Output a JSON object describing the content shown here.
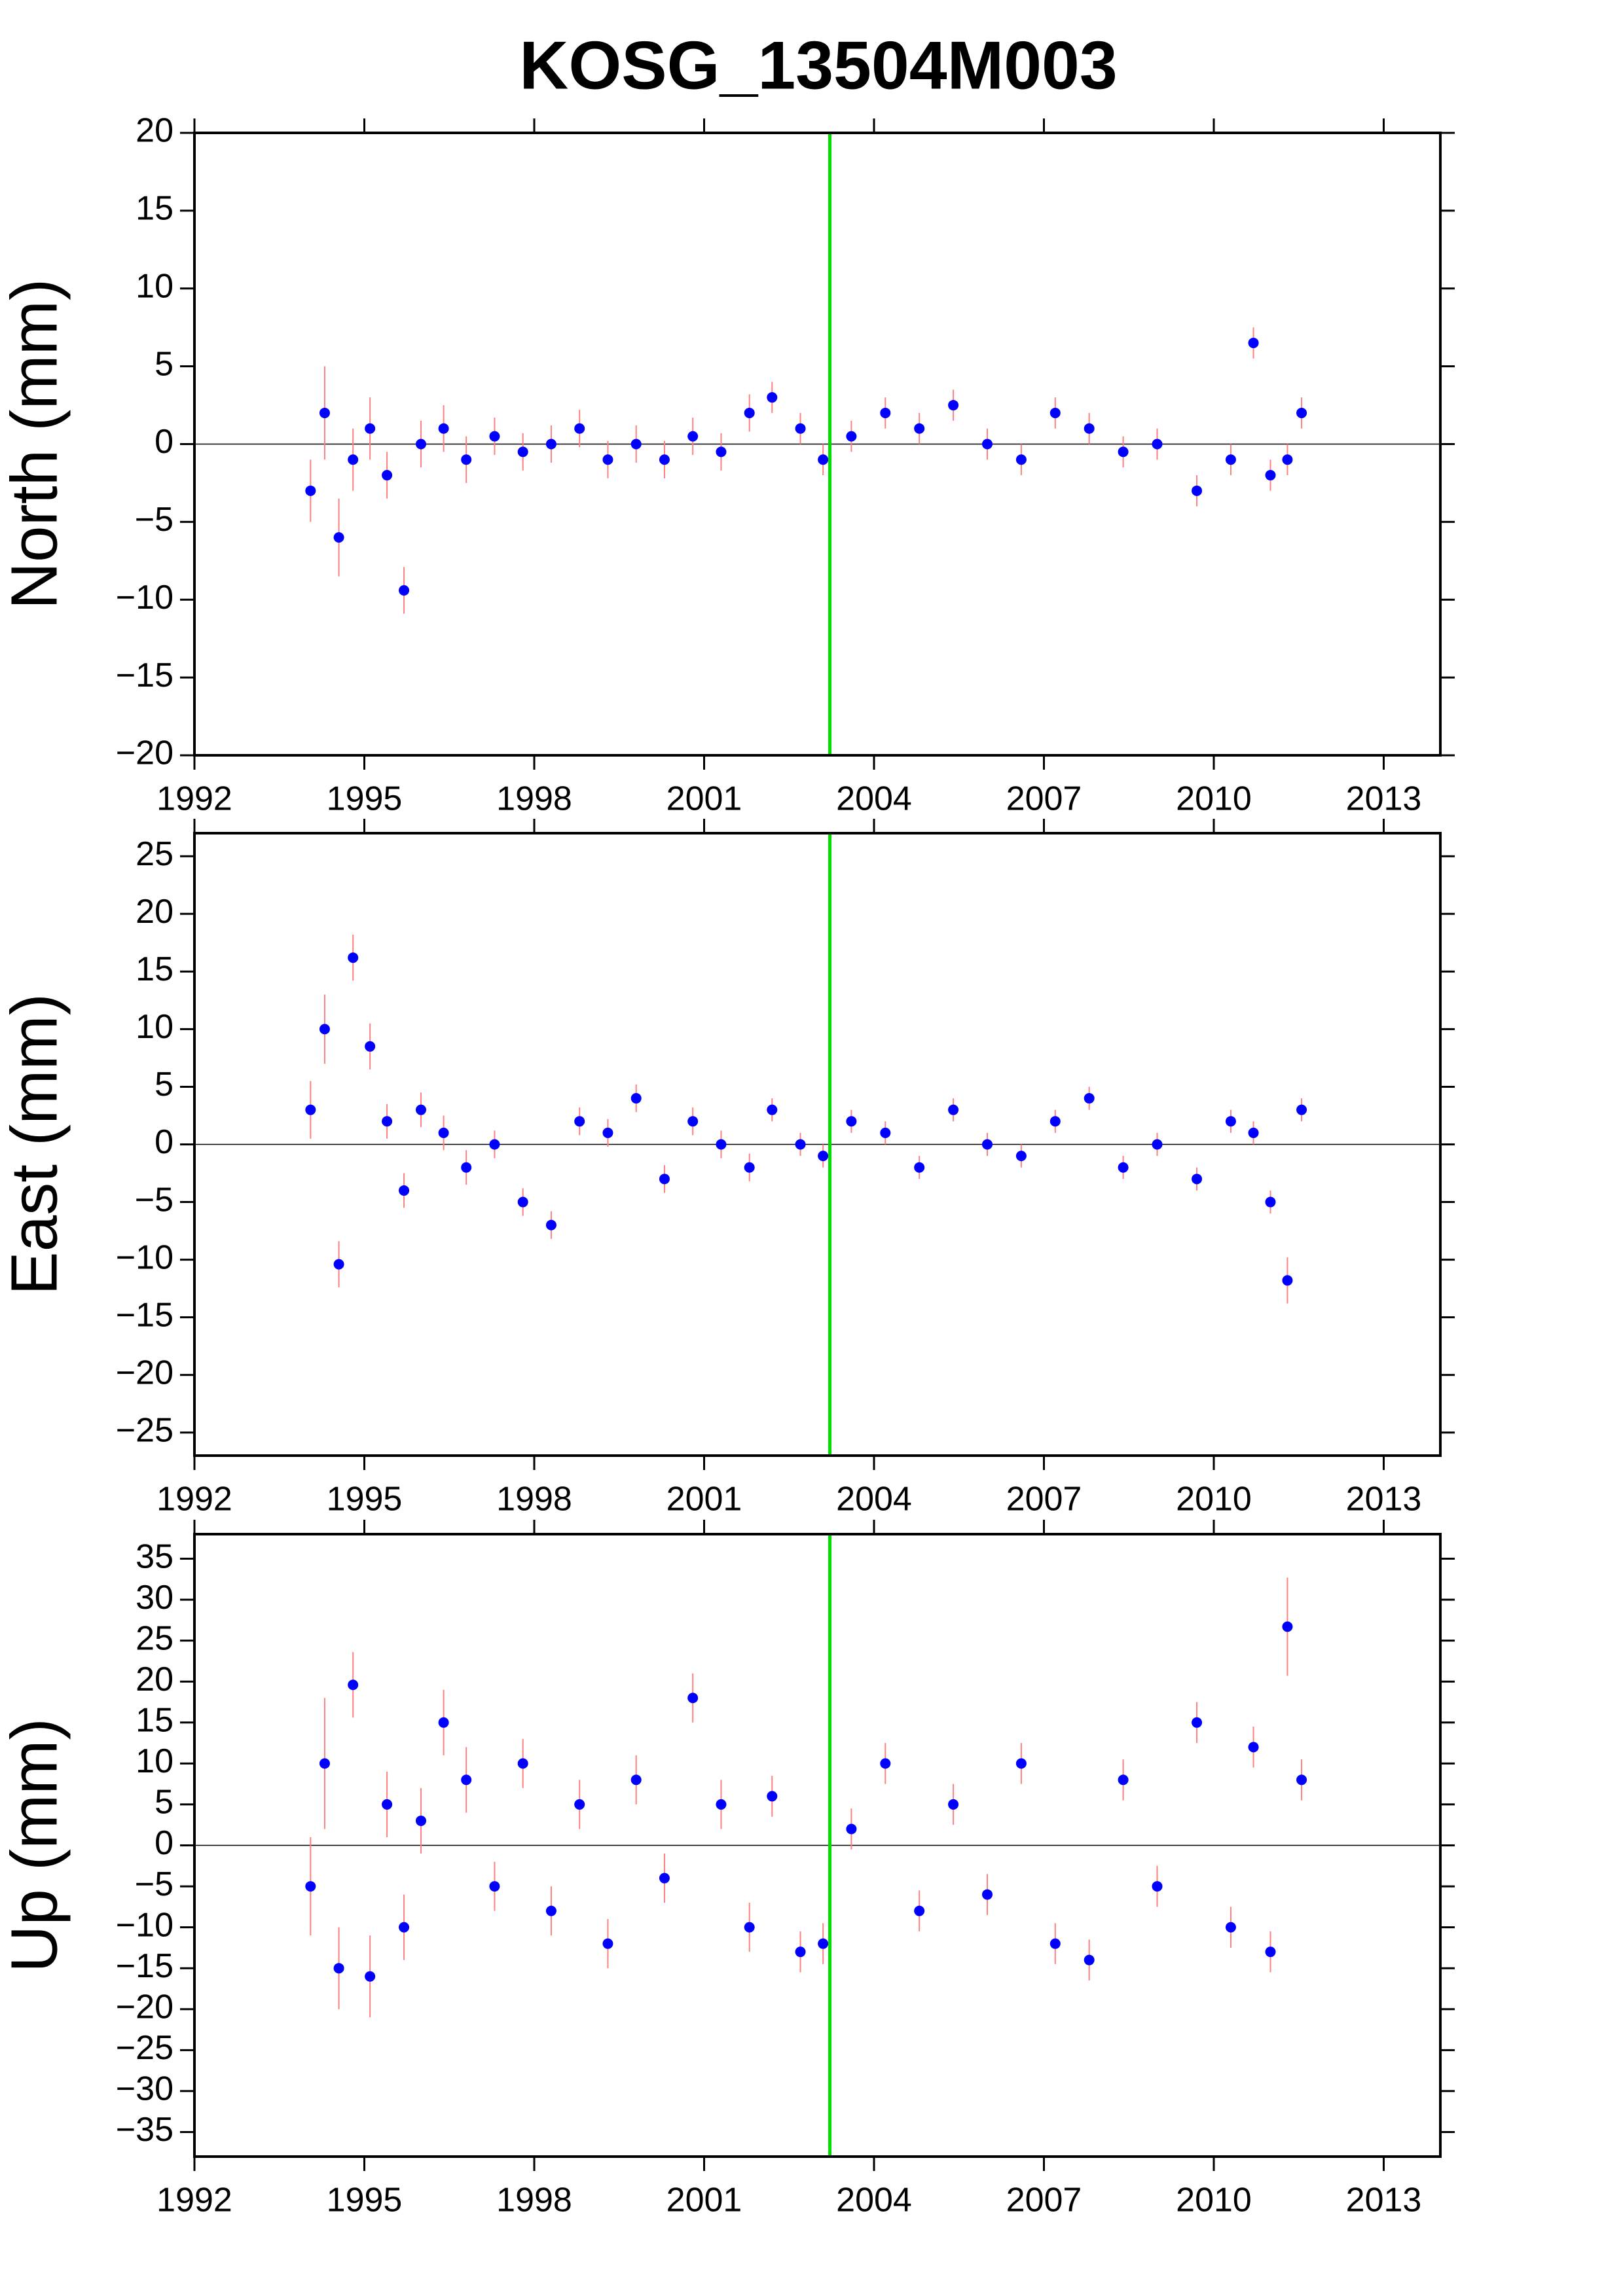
{
  "title": "KOSG_13504M003",
  "chart_data": [
    {
      "type": "scatter",
      "ylabel": "North (mm)",
      "x": [
        1994.05,
        1994.3,
        1994.55,
        1994.8,
        1995.1,
        1995.4,
        1995.7,
        1996.0,
        1996.4,
        1996.8,
        1997.3,
        1997.8,
        1998.3,
        1998.8,
        1999.3,
        1999.8,
        2000.3,
        2000.8,
        2001.3,
        2001.8,
        2002.2,
        2002.7,
        2003.1,
        2003.6,
        2004.2,
        2004.8,
        2005.4,
        2006.0,
        2006.6,
        2007.2,
        2007.8,
        2008.4,
        2009.0,
        2009.7,
        2010.3,
        2010.7,
        2011.0,
        2011.3,
        2011.55
      ],
      "series": [
        {
          "color": "#0000ff",
          "error_color": "#ff8080",
          "values": [
            -3,
            2,
            -6,
            -1,
            1,
            -2,
            -9.4,
            0,
            1,
            -1,
            0.5,
            -0.5,
            0,
            1,
            -1,
            0,
            -1,
            0.5,
            -0.5,
            2,
            3,
            1,
            -1,
            0.5,
            2,
            1,
            2.5,
            0,
            -1,
            2,
            1,
            -0.5,
            0,
            -3,
            -1,
            6.5,
            -2,
            -1,
            2
          ],
          "errors": [
            2,
            3,
            2.5,
            2,
            2,
            1.5,
            1.5,
            1.5,
            1.5,
            1.5,
            1.2,
            1.2,
            1.2,
            1.2,
            1.2,
            1.2,
            1.2,
            1.2,
            1.2,
            1.2,
            1,
            1,
            1,
            1,
            1,
            1,
            1,
            1,
            1,
            1,
            1,
            1,
            1,
            1,
            1,
            1,
            1,
            1,
            1
          ]
        }
      ],
      "xlim": [
        1992,
        2014
      ],
      "xticks": [
        1992,
        1995,
        1998,
        2001,
        2004,
        2007,
        2010,
        2013
      ],
      "ylim": [
        -20,
        20
      ],
      "yticks": [
        {
          "value": -20,
          "label": "−20"
        },
        {
          "value": -15,
          "label": "−15"
        },
        {
          "value": -10,
          "label": "−10"
        },
        {
          "value": -5,
          "label": "−5"
        },
        0,
        5,
        10,
        15,
        20
      ],
      "hline": 0,
      "vline": 2003.22,
      "vline_color": "#00e000"
    },
    {
      "type": "scatter",
      "ylabel": "East (mm)",
      "x": [
        1994.05,
        1994.3,
        1994.55,
        1994.8,
        1995.1,
        1995.4,
        1995.7,
        1996.0,
        1996.4,
        1996.8,
        1997.3,
        1997.8,
        1998.3,
        1998.8,
        1999.3,
        1999.8,
        2000.3,
        2000.8,
        2001.3,
        2001.8,
        2002.2,
        2002.7,
        2003.1,
        2003.6,
        2004.2,
        2004.8,
        2005.4,
        2006.0,
        2006.6,
        2007.2,
        2007.8,
        2008.4,
        2009.0,
        2009.7,
        2010.3,
        2010.7,
        2011.0,
        2011.3,
        2011.55
      ],
      "series": [
        {
          "color": "#0000ff",
          "error_color": "#ff8080",
          "values": [
            3,
            10,
            -10.4,
            16.2,
            8.5,
            2,
            -4,
            3,
            1,
            -2,
            0,
            -5,
            -7,
            2,
            1,
            4,
            -3,
            2,
            0,
            -2,
            3,
            0,
            -1,
            2,
            1,
            -2,
            3,
            0,
            -1,
            2,
            4,
            -2,
            0,
            -3,
            2,
            1,
            -5,
            -11.8,
            3
          ],
          "errors": [
            2.5,
            3,
            2,
            2,
            2,
            1.5,
            1.5,
            1.5,
            1.5,
            1.5,
            1.2,
            1.2,
            1.2,
            1.2,
            1.2,
            1.2,
            1.2,
            1.2,
            1.2,
            1.2,
            1,
            1,
            1,
            1,
            1,
            1,
            1,
            1,
            1,
            1,
            1,
            1,
            1,
            1,
            1,
            1,
            1,
            2,
            1
          ]
        }
      ],
      "xlim": [
        1992,
        2014
      ],
      "xticks": [
        1992,
        1995,
        1998,
        2001,
        2004,
        2007,
        2010,
        2013
      ],
      "ylim": [
        -27,
        27
      ],
      "yticks": [
        {
          "value": -25,
          "label": "−25"
        },
        {
          "value": -20,
          "label": "−20"
        },
        {
          "value": -15,
          "label": "−15"
        },
        {
          "value": -10,
          "label": "−10"
        },
        {
          "value": -5,
          "label": "−5"
        },
        0,
        5,
        10,
        15,
        20,
        25
      ],
      "hline": 0,
      "vline": 2003.22,
      "vline_color": "#00e000"
    },
    {
      "type": "scatter",
      "ylabel": "Up (mm)",
      "x": [
        1994.05,
        1994.3,
        1994.55,
        1994.8,
        1995.1,
        1995.4,
        1995.7,
        1996.0,
        1996.4,
        1996.8,
        1997.3,
        1997.8,
        1998.3,
        1998.8,
        1999.3,
        1999.8,
        2000.3,
        2000.8,
        2001.3,
        2001.8,
        2002.2,
        2002.7,
        2003.1,
        2003.6,
        2004.2,
        2004.8,
        2005.4,
        2006.0,
        2006.6,
        2007.2,
        2007.8,
        2008.4,
        2009.0,
        2009.7,
        2010.3,
        2010.7,
        2011.0,
        2011.3,
        2011.55
      ],
      "series": [
        {
          "color": "#0000ff",
          "error_color": "#ff8080",
          "values": [
            -5,
            10,
            -15,
            19.6,
            -16,
            5,
            -10,
            3,
            15,
            8,
            -5,
            10,
            -8,
            5,
            -12,
            8,
            -4,
            18,
            5,
            -10,
            6,
            -13,
            -12,
            2,
            10,
            -8,
            5,
            -6,
            10,
            -12,
            -14,
            8,
            -5,
            15,
            -10,
            12,
            -13,
            26.7,
            8
          ],
          "errors": [
            6,
            8,
            5,
            4,
            5,
            4,
            4,
            4,
            4,
            4,
            3,
            3,
            3,
            3,
            3,
            3,
            3,
            3,
            3,
            3,
            2.5,
            2.5,
            2.5,
            2.5,
            2.5,
            2.5,
            2.5,
            2.5,
            2.5,
            2.5,
            2.5,
            2.5,
            2.5,
            2.5,
            2.5,
            2.5,
            2.5,
            6,
            2.5
          ]
        }
      ],
      "xlim": [
        1992,
        2014
      ],
      "xticks": [
        1992,
        1995,
        1998,
        2001,
        2004,
        2007,
        2010,
        2013
      ],
      "ylim": [
        -38,
        38
      ],
      "yticks": [
        {
          "value": -35,
          "label": "−35"
        },
        {
          "value": -30,
          "label": "−30"
        },
        {
          "value": -25,
          "label": "−25"
        },
        {
          "value": -20,
          "label": "−20"
        },
        {
          "value": -15,
          "label": "−15"
        },
        {
          "value": -10,
          "label": "−10"
        },
        {
          "value": -5,
          "label": "−5"
        },
        0,
        5,
        10,
        15,
        20,
        25,
        30,
        35
      ],
      "hline": 0,
      "vline": 2003.22,
      "vline_color": "#00e000"
    }
  ]
}
